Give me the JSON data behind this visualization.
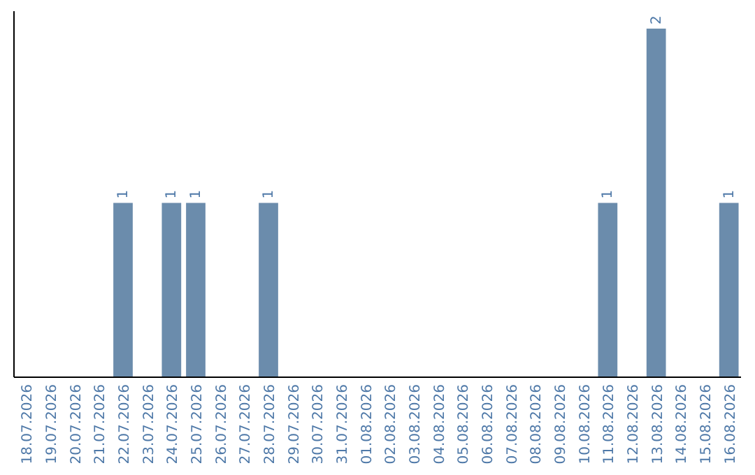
{
  "chart_data": {
    "type": "bar",
    "categories": [
      "18.07.2026",
      "19.07.2026",
      "20.07.2026",
      "21.07.2026",
      "22.07.2026",
      "23.07.2026",
      "24.07.2026",
      "25.07.2026",
      "26.07.2026",
      "27.07.2026",
      "28.07.2026",
      "29.07.2026",
      "30.07.2026",
      "31.07.2026",
      "01.08.2026",
      "02.08.2026",
      "03.08.2026",
      "04.08.2026",
      "05.08.2026",
      "06.08.2026",
      "07.08.2026",
      "08.08.2026",
      "09.08.2026",
      "10.08.2026",
      "11.08.2026",
      "12.08.2026",
      "13.08.2026",
      "14.08.2026",
      "15.08.2026",
      "16.08.2026"
    ],
    "values": [
      0,
      0,
      0,
      0,
      1,
      0,
      1,
      1,
      0,
      0,
      1,
      0,
      0,
      0,
      0,
      0,
      0,
      0,
      0,
      0,
      0,
      0,
      0,
      0,
      1,
      0,
      2,
      0,
      0,
      1
    ],
    "value_labels": [
      null,
      null,
      null,
      null,
      "1",
      null,
      "1",
      "1",
      null,
      null,
      "1",
      null,
      null,
      null,
      null,
      null,
      null,
      null,
      null,
      null,
      null,
      null,
      null,
      null,
      "1",
      null,
      "2",
      null,
      null,
      "1"
    ],
    "color": "#6b8cac",
    "tick_labels": "x"
  }
}
